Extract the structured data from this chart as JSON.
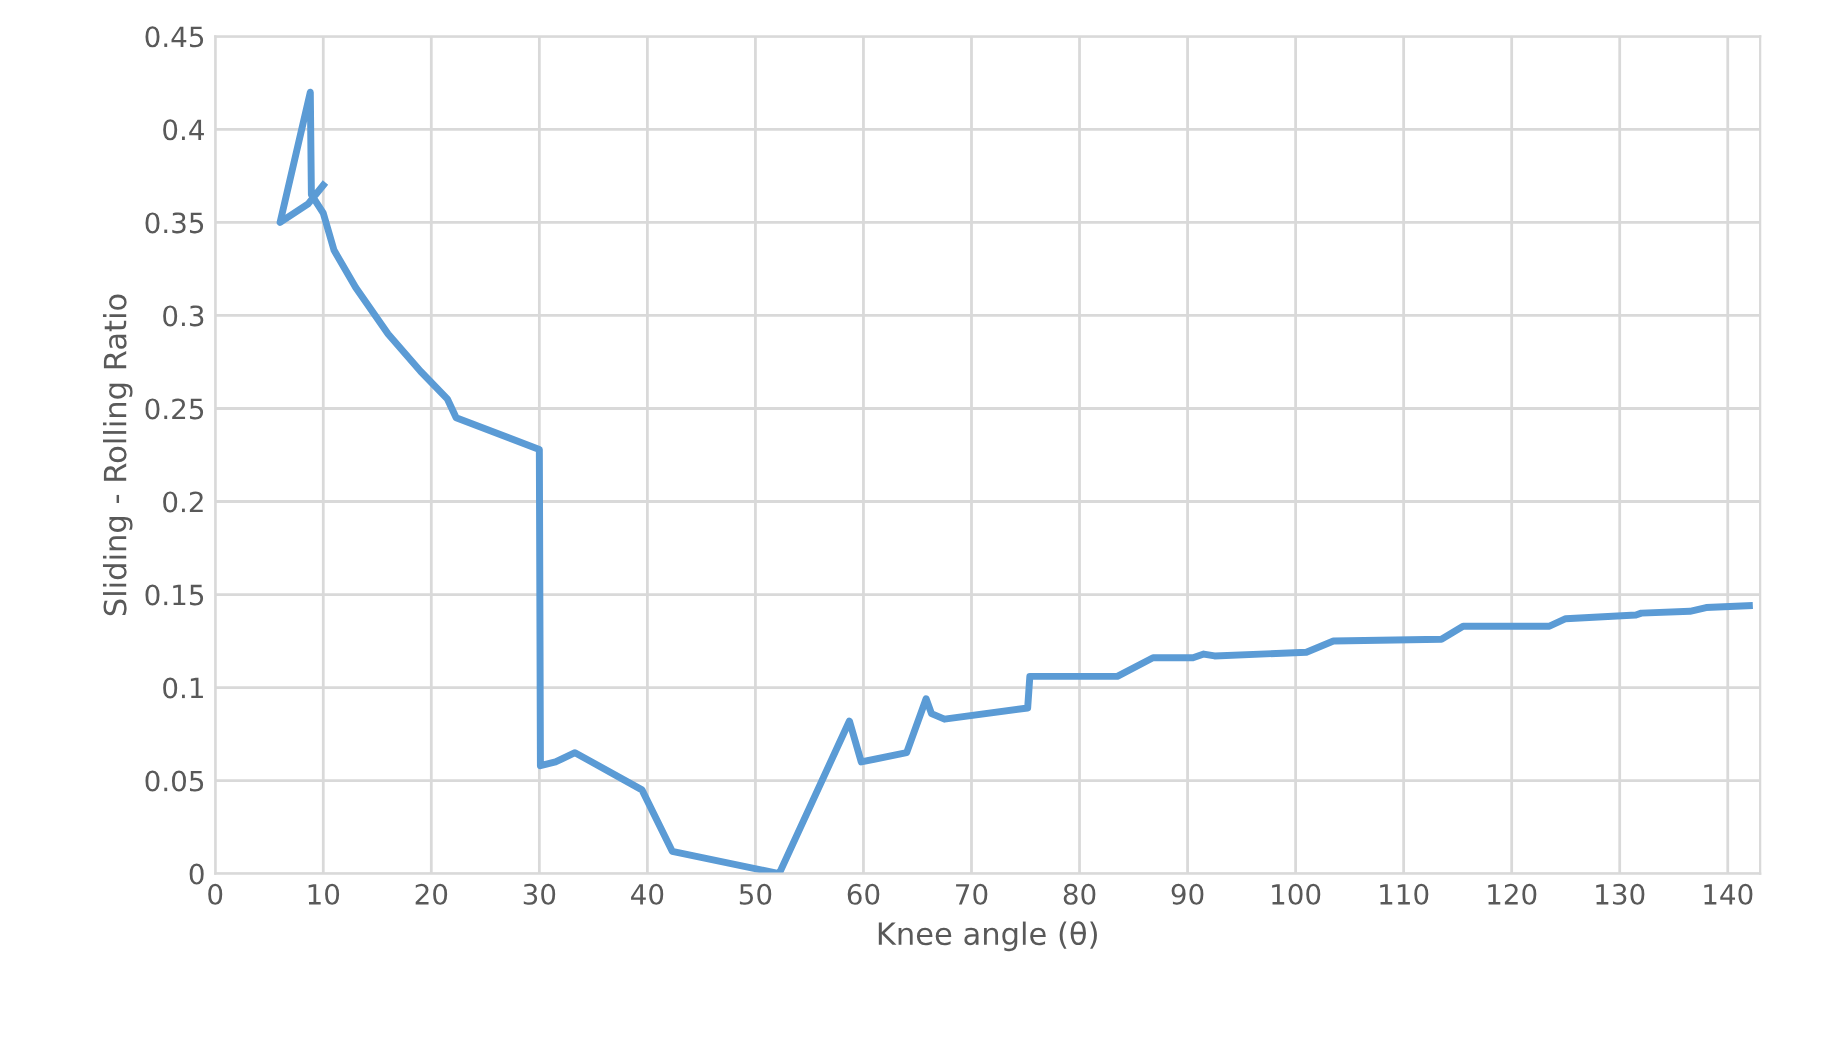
{
  "chart_data": {
    "type": "line",
    "xlabel": "Knee angle (θ)",
    "ylabel": "Sliding - Rolling Ratio",
    "xlim": [
      0,
      143
    ],
    "xticks": [
      0,
      10,
      20,
      30,
      40,
      50,
      60,
      70,
      80,
      90,
      100,
      110,
      120,
      130,
      140
    ],
    "ylim": [
      0,
      0.45
    ],
    "yticks": [
      0,
      0.05,
      0.1,
      0.15,
      0.2,
      0.25,
      0.3,
      0.35,
      0.4,
      0.45
    ],
    "grid": true,
    "marker": "none",
    "line_style": "solid",
    "series": [
      {
        "color": "#5b9bd5",
        "x": [
          10,
          8.6,
          6,
          8.8,
          8.9,
          10,
          11,
          13,
          16,
          19,
          21.5,
          22.3,
          30,
          30.1,
          31.5,
          33.3,
          39.5,
          42.3,
          52.2,
          58.7,
          59.8,
          64,
          65.8,
          66.3,
          67.5,
          75.2,
          75.4,
          83.5,
          86.8,
          90.5,
          91.5,
          92.5,
          101,
          103.5,
          113.5,
          115.5,
          123.5,
          125,
          131.5,
          132,
          136.5,
          138,
          142
        ],
        "values": [
          0.37,
          0.36,
          0.35,
          0.42,
          0.365,
          0.355,
          0.335,
          0.315,
          0.29,
          0.27,
          0.255,
          0.245,
          0.228,
          0.058,
          0.06,
          0.065,
          0.045,
          0.012,
          0.0,
          0.082,
          0.06,
          0.065,
          0.094,
          0.086,
          0.083,
          0.089,
          0.106,
          0.106,
          0.116,
          0.116,
          0.118,
          0.117,
          0.119,
          0.125,
          0.126,
          0.133,
          0.133,
          0.137,
          0.139,
          0.14,
          0.141,
          0.143,
          0.144
        ]
      }
    ]
  }
}
